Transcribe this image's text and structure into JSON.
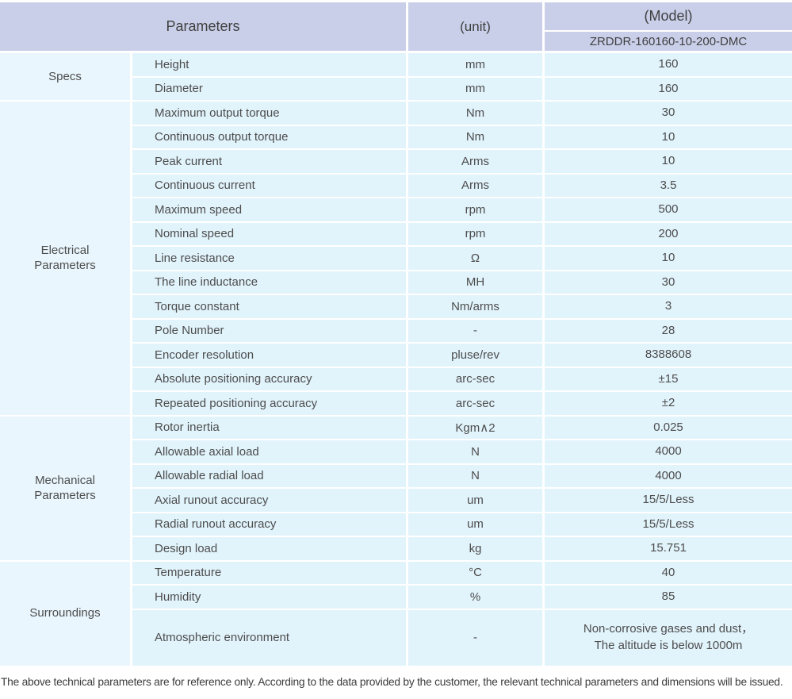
{
  "header": {
    "parameters_label": "Parameters",
    "unit_label": "(unit)",
    "model_label": "(Model)",
    "model_value": "ZRDDR-160160-10-200-DMC"
  },
  "colors": {
    "header_bg": "#c9cfe9",
    "row_bg": "#e1f3fb",
    "group_bg": "#e9f6fd",
    "separator": "#ffffff",
    "text": "#4d4d4d"
  },
  "groups": [
    {
      "name": "Specs",
      "rows": [
        {
          "param": "Height",
          "unit": "mm",
          "value": "160"
        },
        {
          "param": "Diameter",
          "unit": "mm",
          "value": "160"
        }
      ]
    },
    {
      "name": "Electrical Parameters",
      "rows": [
        {
          "param": "Maximum output torque",
          "unit": "Nm",
          "value": "30"
        },
        {
          "param": "Continuous output torque",
          "unit": "Nm",
          "value": "10"
        },
        {
          "param": "Peak current",
          "unit": "Arms",
          "value": "10"
        },
        {
          "param": "Continuous current",
          "unit": "Arms",
          "value": "3.5"
        },
        {
          "param": "Maximum speed",
          "unit": "rpm",
          "value": "500"
        },
        {
          "param": "Nominal speed",
          "unit": "rpm",
          "value": "200"
        },
        {
          "param": "Line resistance",
          "unit": "Ω",
          "value": "10"
        },
        {
          "param": "The line inductance",
          "unit": "MH",
          "value": "30"
        },
        {
          "param": "Torque constant",
          "unit": "Nm/arms",
          "value": "3"
        },
        {
          "param": "Pole Number",
          "unit": "-",
          "value": "28"
        },
        {
          "param": "Encoder resolution",
          "unit": "pluse/rev",
          "value": "8388608"
        },
        {
          "param": "Absolute positioning accuracy",
          "unit": "arc-sec",
          "value": "±15"
        },
        {
          "param": "Repeated positioning accuracy",
          "unit": "arc-sec",
          "value": "±2"
        }
      ]
    },
    {
      "name": "Mechanical Parameters",
      "rows": [
        {
          "param": "Rotor inertia",
          "unit": "Kgm∧2",
          "value": "0.025"
        },
        {
          "param": "Allowable axial load",
          "unit": "N",
          "value": "4000"
        },
        {
          "param": "Allowable radial load",
          "unit": "N",
          "value": "4000"
        },
        {
          "param": "Axial runout accuracy",
          "unit": "um",
          "value": "15/5/Less"
        },
        {
          "param": "Radial runout accuracy",
          "unit": "um",
          "value": "15/5/Less"
        },
        {
          "param": "Design load",
          "unit": "kg",
          "value": "15.751"
        }
      ]
    },
    {
      "name": "Surroundings",
      "rows": [
        {
          "param": "Temperature",
          "unit": "°C",
          "value": "40"
        },
        {
          "param": "Humidity",
          "unit": "%",
          "value": "85"
        },
        {
          "param": "Atmospheric environment",
          "unit": "-",
          "value": "Non-corrosive gases and dust，\nThe altitude is below 1000m",
          "tall": true
        }
      ]
    }
  ],
  "footer": {
    "note": "The above technical parameters are for reference only. According to the data provided by the customer, the relevant technical parameters and dimensions will be issued."
  }
}
